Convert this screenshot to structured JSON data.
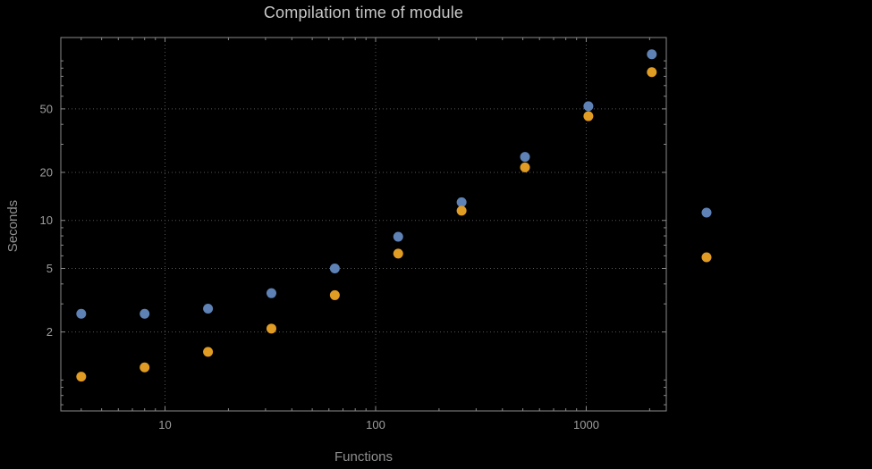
{
  "title": "Compilation time of module",
  "xlabel": "Functions",
  "ylabel": "Seconds",
  "colors": {
    "background": "#000000",
    "frame": "#8a8a8a",
    "grid": "#565656",
    "tick_label": "#9e9e9e",
    "title": "#c8c8c8",
    "axis_label": "#8f8f8f",
    "series1": "#5e82b5",
    "series2": "#e19c24"
  },
  "chart_data": {
    "type": "scatter",
    "scale": "log-log",
    "title": "Compilation time of module",
    "xlabel": "Functions",
    "ylabel": "Seconds",
    "x": [
      4,
      8,
      16,
      32,
      64,
      128,
      256,
      512,
      1024,
      2048
    ],
    "series": [
      {
        "name": "series-1-blue",
        "color": "#5e82b5",
        "values": [
          2.6,
          2.6,
          2.8,
          3.5,
          5.0,
          7.9,
          13,
          25,
          52,
          110
        ]
      },
      {
        "name": "series-2-orange",
        "color": "#e19c24",
        "values": [
          1.05,
          1.2,
          1.5,
          2.1,
          3.4,
          6.2,
          11.5,
          21.5,
          45,
          85
        ]
      }
    ],
    "x_ticks": [
      10,
      100,
      1000
    ],
    "y_ticks": [
      2,
      5,
      10,
      20,
      50
    ],
    "xlim": [
      3.2,
      2400
    ],
    "ylim": [
      0.64,
      140
    ],
    "grid": "dotted",
    "legend": {
      "position": "right-center",
      "labels_visible": false
    }
  }
}
